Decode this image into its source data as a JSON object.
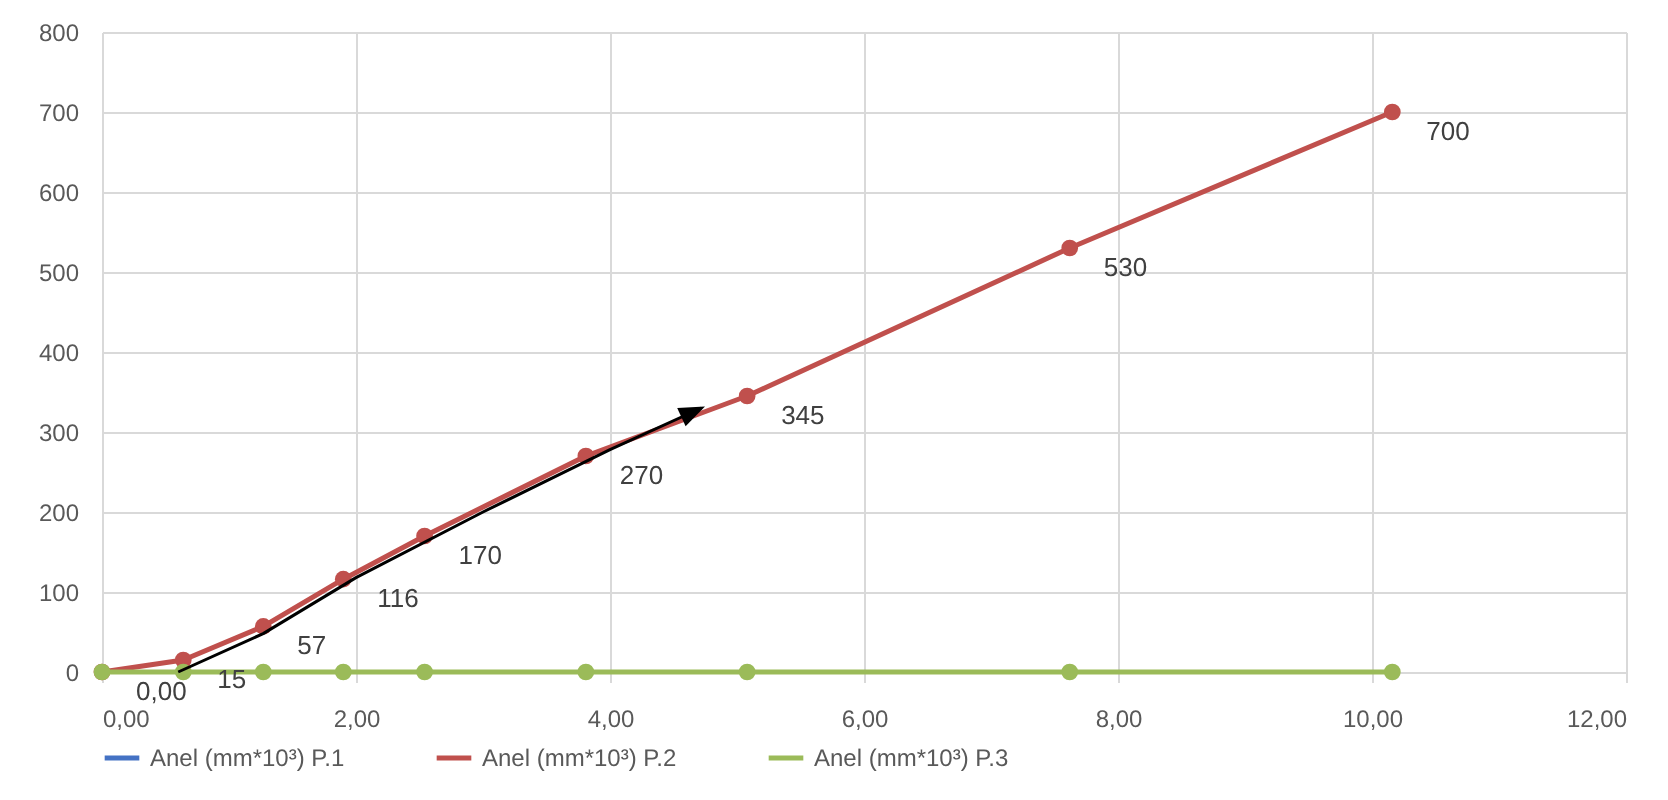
{
  "chart_data": {
    "type": "line",
    "x": [
      0,
      0.64,
      1.27,
      1.9,
      2.54,
      3.81,
      5.08,
      7.62,
      10.16
    ],
    "series": [
      {
        "name": "Anel (mm*10³) P.1",
        "color": "#4472c4",
        "values": [
          null,
          null,
          null,
          null,
          null,
          null,
          null,
          null,
          null
        ]
      },
      {
        "name": "Anel (mm*10³) P.2",
        "color": "#c0504d",
        "values": [
          0,
          15,
          57,
          116,
          170,
          270,
          345,
          530,
          700
        ],
        "value_labels": [
          "0,00",
          "15",
          "57",
          "116",
          "170",
          "270",
          "345",
          "530",
          "700"
        ]
      },
      {
        "name": "Anel (mm*10³) P.3",
        "color": "#9bbb59",
        "values": [
          0,
          0,
          0,
          0,
          0,
          0,
          0,
          0,
          0
        ]
      }
    ],
    "xlim": [
      0,
      12
    ],
    "xticks": [
      {
        "value": 0,
        "label": "0,00"
      },
      {
        "value": 2,
        "label": "2,00"
      },
      {
        "value": 4,
        "label": "4,00"
      },
      {
        "value": 6,
        "label": "6,00"
      },
      {
        "value": 8,
        "label": "8,00"
      },
      {
        "value": 10,
        "label": "10,00"
      },
      {
        "value": 12,
        "label": "12,00"
      }
    ],
    "ylim": [
      0,
      800
    ],
    "yticks": [
      0,
      100,
      200,
      300,
      400,
      500,
      600,
      700,
      800
    ],
    "grid": true,
    "legend": "bottom",
    "marker": "circle",
    "line_style": "solid"
  }
}
